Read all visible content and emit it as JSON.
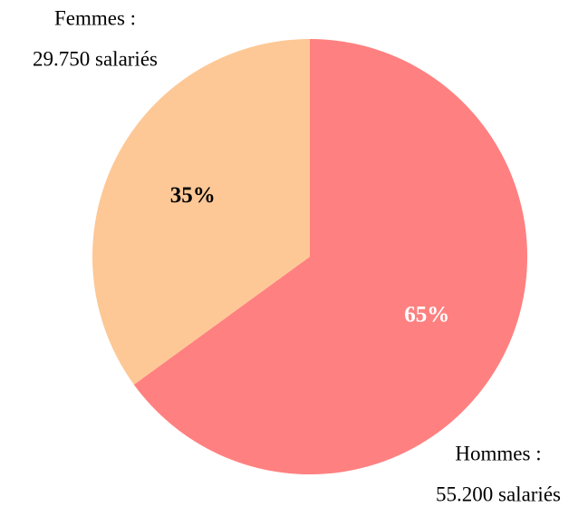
{
  "chart_data": {
    "type": "pie",
    "categories": [
      "Hommes :",
      "Femmes :"
    ],
    "sublabels": [
      "55.200 salariés",
      "29.750 salariés"
    ],
    "values": [
      65,
      35
    ],
    "value_labels": [
      "65%",
      "35%"
    ],
    "colors": [
      "#ff8080",
      "#fdc896"
    ],
    "value_label_colors": [
      "#ffffff",
      "#000000"
    ]
  }
}
